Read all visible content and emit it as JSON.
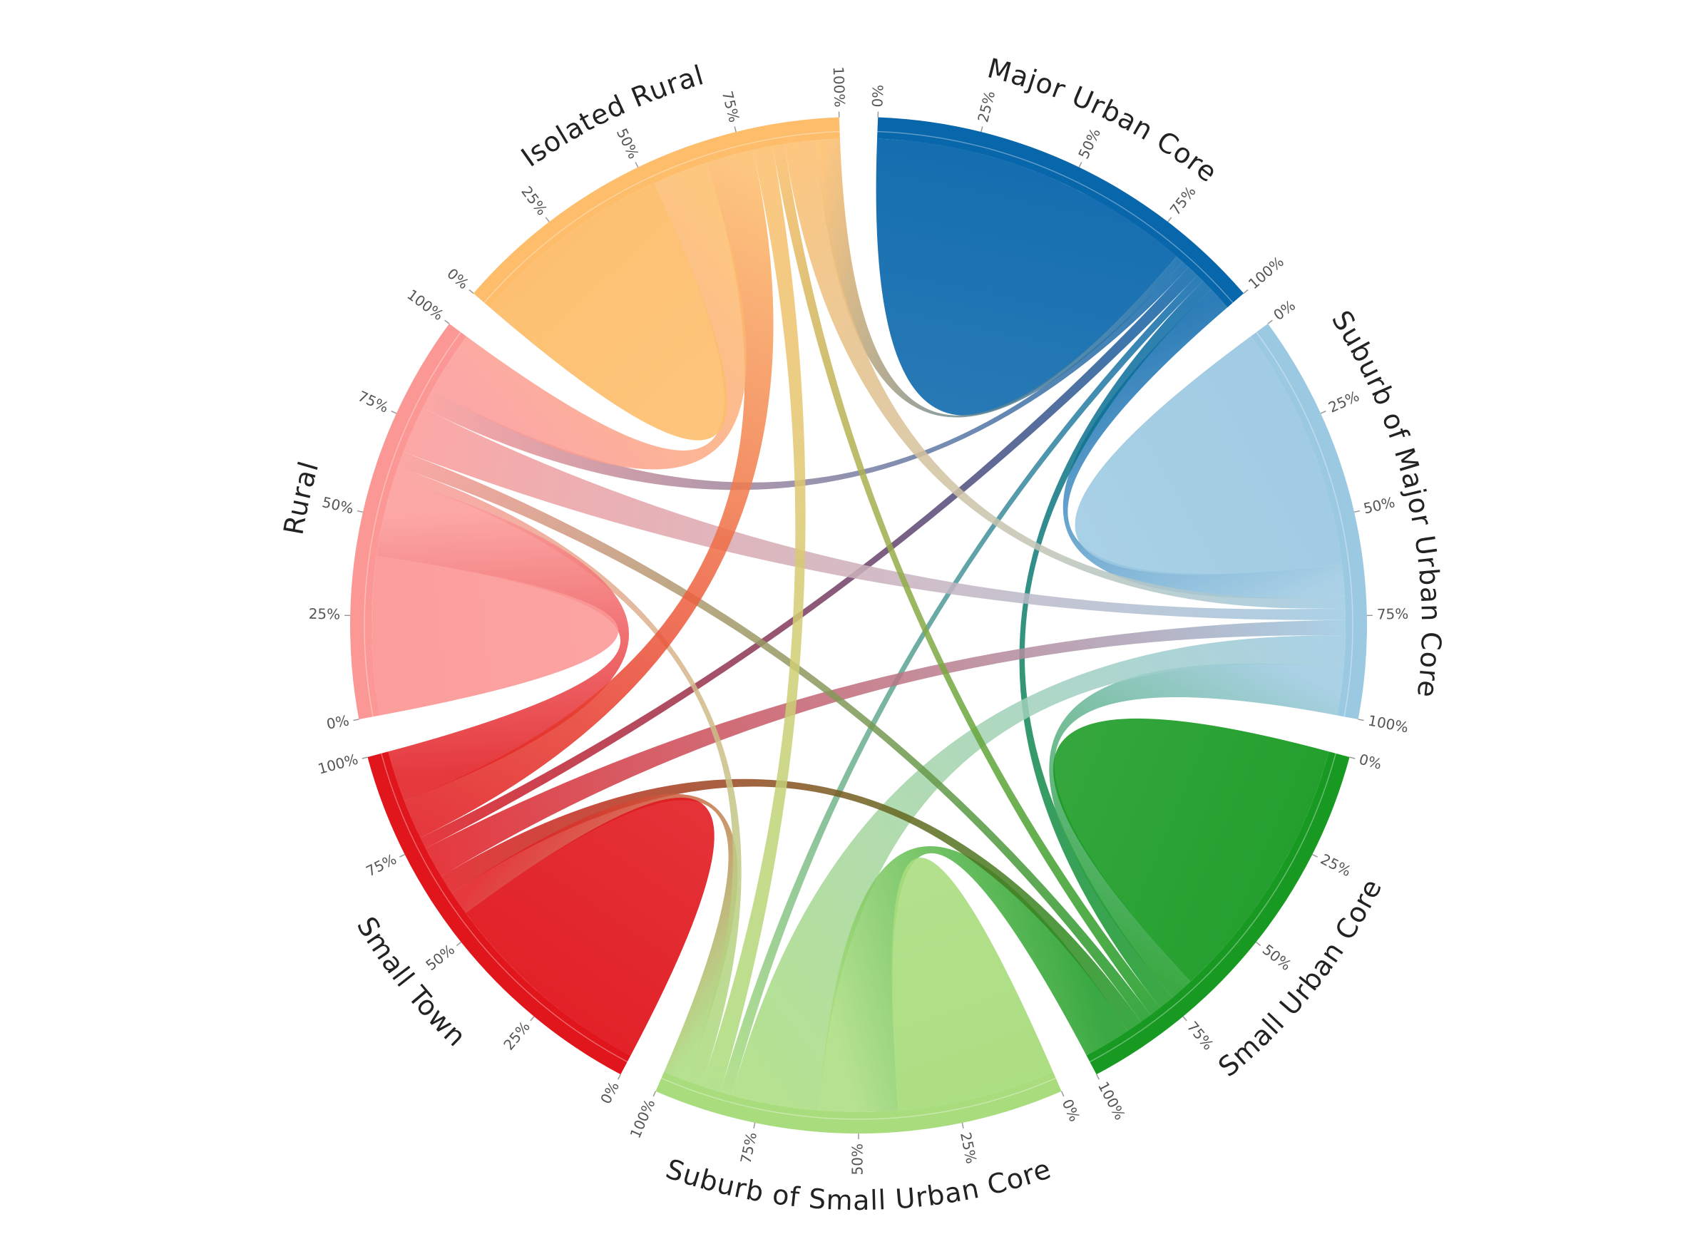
{
  "chart_data": {
    "type": "chord",
    "groups": [
      {
        "name": "Major Urban Core",
        "color": "#0866ab"
      },
      {
        "name": "Suburb of Major Urban Core",
        "color": "#9cc9e2"
      },
      {
        "name": "Small Urban Core",
        "color": "#189a22"
      },
      {
        "name": "Suburb of Small Urban Core",
        "color": "#a8dc7c"
      },
      {
        "name": "Small Town",
        "color": "#e0161c"
      },
      {
        "name": "Rural",
        "color": "#fb9896"
      },
      {
        "name": "Isolated Rural",
        "color": "#fdbd6a"
      }
    ],
    "matrix": [
      [
        82,
        6,
        3,
        2,
        3,
        2,
        2
      ],
      [
        8,
        62,
        12,
        8,
        4,
        3,
        3
      ],
      [
        4,
        6,
        68,
        12,
        4,
        3,
        3
      ],
      [
        3,
        22,
        20,
        40,
        6,
        4,
        5
      ],
      [
        3,
        8,
        5,
        6,
        55,
        13,
        10
      ],
      [
        5,
        12,
        4,
        3,
        20,
        40,
        16
      ],
      [
        6,
        8,
        3,
        5,
        12,
        14,
        52
      ]
    ],
    "ticks": [
      {
        "value": 0,
        "label": "0%"
      },
      {
        "value": 25,
        "label": "25%"
      },
      {
        "value": 50,
        "label": "50%"
      },
      {
        "value": 75,
        "label": "75%"
      },
      {
        "value": 100,
        "label": "100%"
      }
    ]
  }
}
